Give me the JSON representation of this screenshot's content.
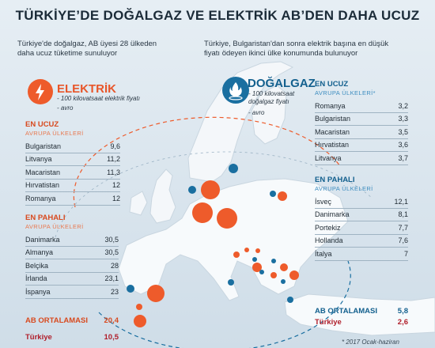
{
  "title": "TÜRKİYE’DE DOĞALGAZ VE ELEKTRİK AB’DEN DAHA UCUZ",
  "intro_left": [
    "Türkiye'de doğalgaz, AB üyesi 28 ülkeden",
    "daha ucuz tüketime sunuluyor"
  ],
  "intro_right": [
    "Türkiye, Bulgaristan'dan sonra elektrik başına en düşük",
    "fiyatı ödeyen ikinci ülke konumunda bulunuyor"
  ],
  "colors": {
    "electricity": "#ee5b2b",
    "gas": "#1a6fa0",
    "map_land": "#f7fafc",
    "sea": "#dfe9f0"
  },
  "electricity": {
    "label": "ELEKTRİK",
    "icon": "lightning-icon",
    "subtitle": [
      "- 100 kilovatsaat elektrik fiyatı",
      "- avro"
    ],
    "cheapest": {
      "heading": "EN UCUZ",
      "subheading": "AVRUPA ÜLKELERİ",
      "rows": [
        {
          "country": "Bulgaristan",
          "value": "9,6"
        },
        {
          "country": "Litvanya",
          "value": "11,2"
        },
        {
          "country": "Macaristan",
          "value": "11,3"
        },
        {
          "country": "Hırvatistan",
          "value": "12"
        },
        {
          "country": "Romanya",
          "value": "12"
        }
      ]
    },
    "most_expensive": {
      "heading": "EN PAHALI",
      "subheading": "AVRUPA ÜLKELERİ",
      "rows": [
        {
          "country": "Danimarka",
          "value": "30,5"
        },
        {
          "country": "Almanya",
          "value": "30,5"
        },
        {
          "country": "Belçika",
          "value": "28"
        },
        {
          "country": "İrlanda",
          "value": "23,1"
        },
        {
          "country": "İspanya",
          "value": "23"
        }
      ]
    },
    "eu_average": {
      "label": "AB ORTALAMASI",
      "value": "20,4"
    },
    "turkey": {
      "label": "Türkiye",
      "value": "10,5"
    }
  },
  "gas": {
    "label": "DOĞALGAZ",
    "icon": "gas-flame-icon",
    "subtitle": [
      "- 100 kilovatsaat",
      "doğalgaz fiyatı",
      "- avro"
    ],
    "cheapest": {
      "heading": "EN UCUZ",
      "subheading": "AVRUPA ÜLKELERİ*",
      "rows": [
        {
          "country": "Romanya",
          "value": "3,2"
        },
        {
          "country": "Bulgaristan",
          "value": "3,3"
        },
        {
          "country": "Macaristan",
          "value": "3,5"
        },
        {
          "country": "Hırvatistan",
          "value": "3,6"
        },
        {
          "country": "Litvanya",
          "value": "3,7"
        }
      ]
    },
    "most_expensive": {
      "heading": "EN PAHALI",
      "subheading": "AVRUPA ÜLKELERİ",
      "rows": [
        {
          "country": "İsveç",
          "value": "12,1"
        },
        {
          "country": "Danimarka",
          "value": "8,1"
        },
        {
          "country": "Portekiz",
          "value": "7,7"
        },
        {
          "country": "Hollanda",
          "value": "7,6"
        },
        {
          "country": "İtalya",
          "value": "7"
        }
      ]
    },
    "eu_average": {
      "label": "AB ORTALAMASI",
      "value": "5,8"
    },
    "turkey": {
      "label": "Türkiye",
      "value": "2,6"
    }
  },
  "footnote": "* 2017 Ocak-haziran"
}
